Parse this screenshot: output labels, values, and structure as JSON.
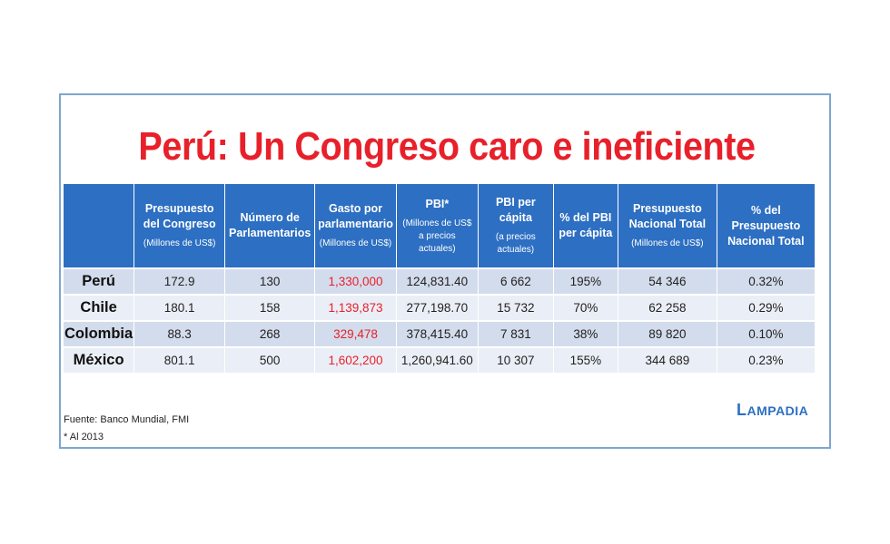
{
  "title": "Perú: Un Congreso caro e ineficiente",
  "headers": [
    {
      "label": "",
      "unit": ""
    },
    {
      "label": "Presupuesto del Congreso",
      "unit": "(Millones de US$)"
    },
    {
      "label": "Número de Parlamentarios",
      "unit": ""
    },
    {
      "label": "Gasto por parlamentario",
      "unit": "(Millones de US$)"
    },
    {
      "label": "PBI*",
      "unit": "(Millones de US$ a precios actuales)"
    },
    {
      "label": "PBI per cápita",
      "unit": "(a precios actuales)"
    },
    {
      "label": "% del PBI per cápita",
      "unit": ""
    },
    {
      "label": "Presupuesto Nacional Total",
      "unit": "(Millones de US$)"
    },
    {
      "label": "% del Presupuesto Nacional Total",
      "unit": ""
    }
  ],
  "rows": [
    [
      "Perú",
      "172.9",
      "130",
      "1,330,000",
      "124,831.40",
      "6 662",
      "195%",
      "54 346",
      "0.32%"
    ],
    [
      "Chile",
      "180.1",
      "158",
      "1,139,873",
      "277,198.70",
      "15 732",
      "70%",
      "62 258",
      "0.29%"
    ],
    [
      "Colombia",
      "88.3",
      "268",
      "329,478",
      "378,415.40",
      "7 831",
      "38%",
      "89 820",
      "0.10%"
    ],
    [
      "México",
      "801.1",
      "500",
      "1,602,200",
      "1,260,941.60",
      "10 307",
      "155%",
      "344 689",
      "0.23%"
    ]
  ],
  "source": "Fuente: Banco Mundial, FMI",
  "note": "* Al 2013",
  "logo": {
    "first": "L",
    "rest": "AMPADIA"
  },
  "colors": {
    "title": "#e8202a",
    "header_bg": "#2d6fc2",
    "row_odd": "#d3dcec",
    "row_even": "#eaeef6",
    "highlight": "#e8202a",
    "frame": "#7fa6cf"
  }
}
